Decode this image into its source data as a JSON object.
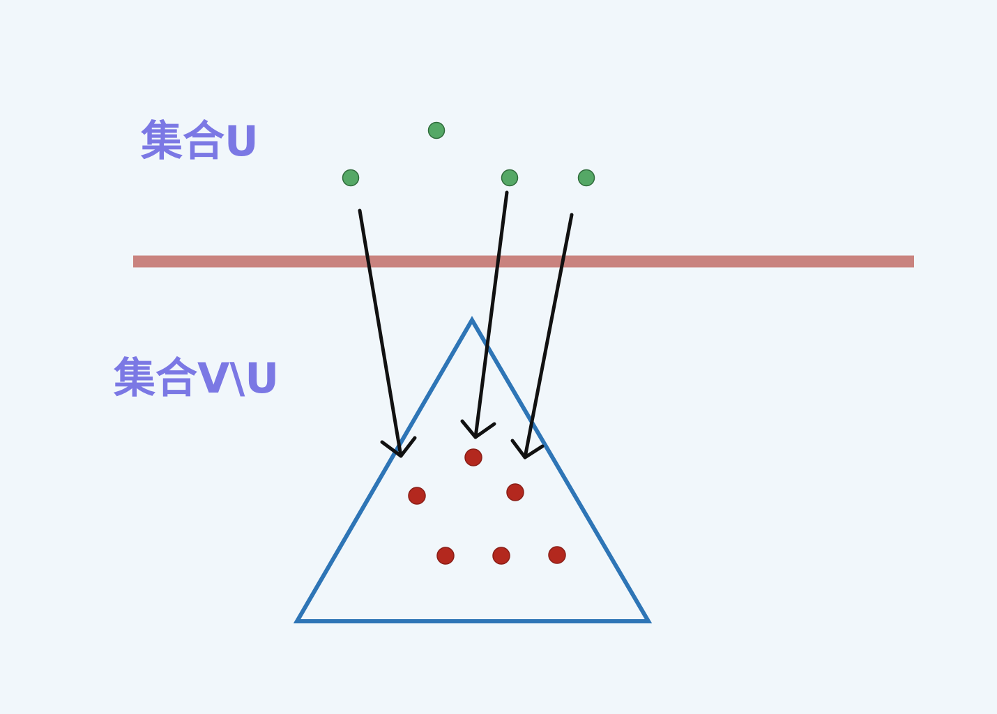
{
  "labels": {
    "set_u": "集合U",
    "set_v_minus_u": "集合V\\U"
  },
  "colors": {
    "background": "#f1f7fb",
    "label": "#7b78e4",
    "divider": "#c9837f",
    "triangle": "#2e75b6",
    "arrow": "#111111",
    "node_u_fill": "#55a866",
    "node_u_stroke": "#2f6b3b",
    "node_v_fill": "#b3281e",
    "node_v_stroke": "#8a1e17"
  },
  "diagram": {
    "nodes_in_u": 4,
    "nodes_in_v_minus_u": 6,
    "arrows_from_u_to_v_minus_u": 3
  }
}
